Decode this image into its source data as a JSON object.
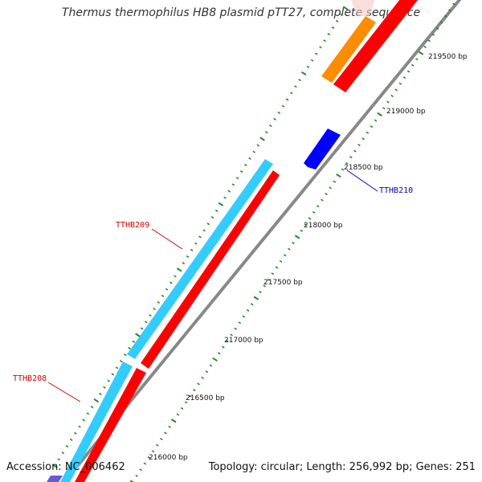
{
  "title": "Thermus thermophilus HB8 plasmid pTT27, complete sequence",
  "footer": {
    "accession": "Accession: NC_006462",
    "topology": "Topology: circular; Length: 256,992 bp; Genes: 251"
  },
  "ticks": [
    {
      "label": "216000 bp"
    },
    {
      "label": "216500 bp"
    },
    {
      "label": "217000 bp"
    },
    {
      "label": "217500 bp"
    },
    {
      "label": "218000 bp"
    },
    {
      "label": "218500 bp"
    },
    {
      "label": "219000 bp"
    },
    {
      "label": "219500 bp"
    }
  ],
  "genes": [
    {
      "name": "TTHB208",
      "color": "#d40000"
    },
    {
      "name": "TTHB209",
      "color": "#d40000"
    },
    {
      "name": "TTHB210",
      "color": "#0000c8"
    }
  ],
  "colors": {
    "backbone": "#888888",
    "forward_cds": "#ff0000",
    "reverse_cds": "#0000ff",
    "gene_feature": "#33ccff",
    "other_feature": "#ff8c00",
    "tick_mark": "#228b22"
  }
}
